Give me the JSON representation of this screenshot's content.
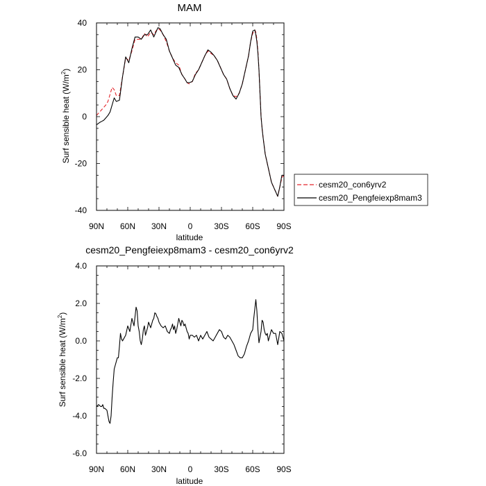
{
  "chart_data": [
    {
      "type": "line",
      "title": "MAM",
      "xlabel": "latitude",
      "ylabel": "Surf sensible heat (W/m",
      "ylabel_sup": "2",
      "ylabel_tail": ")",
      "xlim": [
        90,
        -90
      ],
      "ylim": [
        -40,
        40
      ],
      "x_ticks": [
        90,
        60,
        30,
        0,
        -30,
        -60,
        -90
      ],
      "x_tick_labels": [
        "90N",
        "60N",
        "30N",
        "0",
        "30S",
        "60S",
        "90S"
      ],
      "y_ticks": [
        -40,
        -20,
        0,
        20,
        40
      ],
      "y_tick_labels": [
        "-40",
        "-20",
        "0",
        "20",
        "40"
      ],
      "legend_position": "outside-right",
      "series": [
        {
          "name": "cesm20_con6yrv2",
          "color": "#e4252a",
          "dash": "dashed",
          "x": [
            90,
            86,
            83,
            81,
            79,
            77,
            75,
            73,
            71,
            68,
            65,
            62,
            59,
            56,
            53,
            50,
            47,
            44,
            41,
            38,
            35,
            33,
            31,
            29,
            26,
            23,
            20,
            17,
            14,
            11,
            8,
            5,
            3,
            1,
            -2,
            -5,
            -8,
            -11,
            -14,
            -17,
            -20,
            -23,
            -26,
            -29,
            -32,
            -35,
            -38,
            -41,
            -44,
            -47,
            -50,
            -52,
            -54,
            -56,
            -58,
            -60,
            -62,
            -63,
            -64,
            -65,
            -66,
            -67,
            -68,
            -69,
            -70,
            -72,
            -74,
            -76,
            -78,
            -80,
            -82,
            -84,
            -86,
            -88,
            -90
          ],
          "y": [
            0.5,
            2.5,
            4,
            5,
            6.5,
            9.5,
            12.5,
            11.5,
            9,
            9,
            17,
            25,
            24,
            28,
            33,
            33,
            33,
            35.5,
            34,
            36,
            35,
            36.5,
            37.5,
            37,
            35,
            32,
            28,
            25,
            23,
            22,
            18,
            16,
            14.5,
            14,
            15,
            18.5,
            20,
            23,
            26,
            28,
            27,
            26,
            24,
            21,
            18,
            16,
            12,
            9,
            8.5,
            10,
            14,
            18,
            22,
            26,
            32,
            35.5,
            37,
            36,
            33,
            28,
            20,
            10,
            0,
            -5,
            -9,
            -16,
            -20,
            -24,
            -28,
            -30,
            -32,
            -34,
            -30,
            -26,
            -25
          ]
        },
        {
          "name": "cesm20_Pengfeiexp8mam3",
          "color": "#000000",
          "dash": "solid",
          "x": [
            90,
            87,
            85,
            83,
            81,
            79,
            77,
            75,
            73,
            71,
            68,
            65,
            62,
            59,
            56,
            53,
            50,
            47,
            44,
            41,
            38,
            35,
            33,
            31,
            29,
            26,
            23,
            20,
            17,
            14,
            11,
            8,
            5,
            3,
            1,
            -2,
            -5,
            -8,
            -11,
            -14,
            -17,
            -20,
            -23,
            -26,
            -29,
            -32,
            -35,
            -38,
            -41,
            -44,
            -47,
            -50,
            -52,
            -54,
            -56,
            -58,
            -60,
            -62,
            -63,
            -64,
            -65,
            -66,
            -67,
            -68,
            -69,
            -70,
            -72,
            -74,
            -76,
            -78,
            -80,
            -82,
            -84,
            -86,
            -88,
            -90
          ],
          "y": [
            -3.5,
            -2.5,
            -2,
            -1.5,
            -0.5,
            0.5,
            2,
            5,
            8,
            6.5,
            7,
            17,
            25.5,
            23,
            29,
            34,
            34,
            33,
            35,
            35,
            37,
            34,
            36,
            38,
            37.5,
            35,
            33,
            28,
            25,
            22,
            21,
            18,
            16,
            14.5,
            14.5,
            15,
            18,
            20,
            23,
            26,
            28.5,
            27.5,
            26,
            24,
            21,
            18,
            16,
            12,
            9,
            7.5,
            10,
            14,
            18,
            22,
            26,
            32,
            36.5,
            37,
            35,
            32,
            27,
            20,
            10,
            0,
            -5,
            -9,
            -16,
            -20,
            -24,
            -28,
            -30,
            -32,
            -34,
            -30,
            -25,
            -25
          ]
        }
      ]
    },
    {
      "type": "line",
      "title": "cesm20_Pengfeiexp8mam3 - cesm20_con6yrv2",
      "xlabel": "latitude",
      "ylabel": "Surf sensible heat (W/m",
      "ylabel_sup": "2",
      "ylabel_tail": ")",
      "xlim": [
        90,
        -90
      ],
      "ylim": [
        -6,
        4
      ],
      "x_ticks": [
        90,
        60,
        30,
        0,
        -30,
        -60,
        -90
      ],
      "x_tick_labels": [
        "90N",
        "60N",
        "30N",
        "0",
        "30S",
        "60S",
        "90S"
      ],
      "y_ticks": [
        -6,
        -4,
        -2,
        0,
        2,
        4
      ],
      "y_tick_labels": [
        "-6.0",
        "-4.0",
        "-2.0",
        "0.0",
        "2.0",
        "4.0"
      ],
      "series": [
        {
          "color": "#000000",
          "dash": "solid",
          "x": [
            90,
            88,
            86,
            85,
            84,
            83,
            82,
            80,
            79,
            78,
            77,
            76,
            75,
            74,
            73,
            72,
            71,
            70,
            69,
            68,
            67,
            66,
            65,
            64,
            62,
            60,
            58,
            56,
            55,
            54,
            53,
            52,
            51,
            50,
            49,
            48,
            47,
            46,
            45,
            44,
            43,
            42,
            41,
            40,
            38,
            36,
            35,
            34,
            33,
            32,
            31,
            30,
            28,
            26,
            24,
            22,
            20,
            19,
            18,
            17,
            16,
            15,
            14,
            13,
            12,
            11,
            10,
            9,
            8,
            7,
            6,
            5,
            4,
            3,
            2,
            1,
            0,
            -2,
            -4,
            -6,
            -8,
            -10,
            -12,
            -14,
            -16,
            -18,
            -20,
            -22,
            -24,
            -26,
            -28,
            -30,
            -32,
            -34,
            -36,
            -38,
            -40,
            -42,
            -44,
            -46,
            -48,
            -50,
            -52,
            -54,
            -56,
            -58,
            -60,
            -61,
            -62,
            -63,
            -64,
            -65,
            -66,
            -67,
            -68,
            -69,
            -70,
            -71,
            -72,
            -73,
            -74,
            -75,
            -76,
            -78,
            -80,
            -82,
            -84,
            -86,
            -88,
            -89,
            -90
          ],
          "y": [
            -3.5,
            -3.4,
            -3.5,
            -3.5,
            -3.4,
            -3.6,
            -3.6,
            -3.7,
            -4.0,
            -4.3,
            -4.4,
            -4.0,
            -3.0,
            -2.2,
            -1.5,
            -1.3,
            -1.1,
            -0.9,
            -0.9,
            -0.3,
            0.4,
            0.1,
            0.0,
            0.1,
            0.3,
            0.8,
            0.5,
            1.2,
            1.0,
            0.8,
            1.3,
            1.8,
            1.6,
            0.8,
            0.5,
            0.0,
            -0.2,
            0.1,
            0.6,
            0.8,
            0.3,
            0.5,
            0.7,
            1.0,
            0.7,
            1.1,
            1.2,
            1.5,
            1.45,
            1.3,
            1.2,
            1.0,
            0.8,
            0.7,
            0.8,
            0.5,
            0.4,
            0.6,
            0.7,
            0.9,
            0.6,
            0.8,
            0.4,
            0.6,
            0.9,
            1.2,
            1.0,
            0.8,
            1.1,
            1.0,
            0.8,
            0.9,
            0.7,
            0.5,
            0.4,
            0.1,
            0.3,
            0.3,
            0.2,
            0.3,
            0.0,
            0.3,
            0.1,
            0.3,
            0.5,
            0.2,
            0.1,
            0.0,
            0.2,
            0.4,
            0.6,
            0.5,
            0.2,
            0.1,
            0.3,
            0.2,
            0.0,
            -0.2,
            -0.5,
            -0.8,
            -0.9,
            -0.9,
            -0.7,
            -0.3,
            0.0,
            0.4,
            0.6,
            1.2,
            1.7,
            2.2,
            1.6,
            0.6,
            -0.1,
            0.2,
            0.5,
            1.1,
            1.0,
            0.6,
            0.4,
            0.3,
            0.4,
            0.0,
            0.2,
            0.6,
            0.4,
            0.4,
            -0.2,
            0.5,
            0.4,
            0.2,
            0.0
          ]
        }
      ]
    }
  ]
}
